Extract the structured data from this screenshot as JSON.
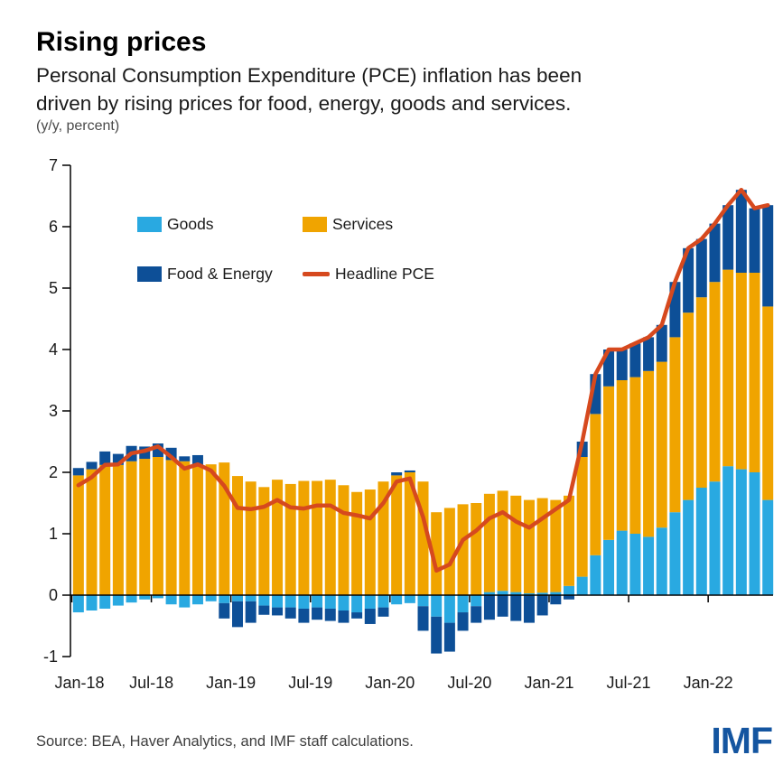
{
  "header": {
    "title": "Rising prices",
    "subtitle_line1": "Personal Consumption Expenditure (PCE) inflation has been",
    "subtitle_line2": "driven by rising prices for food, energy, goods and services.",
    "unit_note": "(y/y, percent)"
  },
  "legend": {
    "goods": {
      "label": "Goods",
      "color": "#29A9E1"
    },
    "services": {
      "label": "Services",
      "color": "#F0A400"
    },
    "food_energy": {
      "label": "Food & Energy",
      "color": "#0D4F97"
    },
    "headline": {
      "label": "Headline PCE",
      "color": "#D6491E"
    }
  },
  "footer": {
    "source": "Source: BEA, Haver Analytics, and IMF staff calculations.",
    "logo_text": "IMF"
  },
  "chart_data": {
    "type": "bar",
    "subtype": "stacked-bars-with-line",
    "title": "Rising prices",
    "xlabel": "",
    "ylabel": "(y/y, percent)",
    "ylim": [
      -1,
      7
    ],
    "grid": false,
    "legend_position": "inside-top-left",
    "x": [
      "Jan-18",
      "Feb-18",
      "Mar-18",
      "Apr-18",
      "May-18",
      "Jun-18",
      "Jul-18",
      "Aug-18",
      "Sep-18",
      "Oct-18",
      "Nov-18",
      "Dec-18",
      "Jan-19",
      "Feb-19",
      "Mar-19",
      "Apr-19",
      "May-19",
      "Jun-19",
      "Jul-19",
      "Aug-19",
      "Sep-19",
      "Oct-19",
      "Nov-19",
      "Dec-19",
      "Jan-20",
      "Feb-20",
      "Mar-20",
      "Apr-20",
      "May-20",
      "Jun-20",
      "Jul-20",
      "Aug-20",
      "Sep-20",
      "Oct-20",
      "Nov-20",
      "Dec-20",
      "Jan-21",
      "Feb-21",
      "Mar-21",
      "Apr-21",
      "May-21",
      "Jun-21",
      "Jul-21",
      "Aug-21",
      "Sep-21",
      "Oct-21",
      "Nov-21",
      "Dec-21",
      "Jan-22",
      "Feb-22",
      "Mar-22",
      "Apr-22",
      "May-22"
    ],
    "stack_order": [
      "goods",
      "services",
      "food_energy"
    ],
    "series": {
      "goods": {
        "name": "Goods",
        "color": "#29A9E1",
        "values": [
          -0.28,
          -0.25,
          -0.22,
          -0.17,
          -0.12,
          -0.07,
          -0.05,
          -0.15,
          -0.2,
          -0.15,
          -0.1,
          -0.13,
          -0.1,
          -0.1,
          -0.17,
          -0.2,
          -0.2,
          -0.22,
          -0.2,
          -0.22,
          -0.25,
          -0.28,
          -0.22,
          -0.2,
          -0.15,
          -0.13,
          -0.18,
          -0.35,
          -0.45,
          -0.28,
          -0.18,
          0.05,
          0.07,
          0.05,
          0.03,
          0.04,
          0.05,
          0.15,
          0.3,
          0.65,
          0.9,
          1.05,
          1.0,
          0.95,
          1.1,
          1.35,
          1.55,
          1.75,
          1.85,
          2.1,
          2.05,
          2.0,
          1.55
        ]
      },
      "services": {
        "name": "Services",
        "color": "#F0A400",
        "values": [
          1.95,
          2.05,
          2.12,
          2.12,
          2.18,
          2.22,
          2.25,
          2.2,
          2.18,
          2.1,
          2.13,
          2.16,
          1.94,
          1.85,
          1.76,
          1.88,
          1.81,
          1.86,
          1.86,
          1.88,
          1.79,
          1.68,
          1.72,
          1.85,
          1.95,
          2.0,
          1.85,
          1.35,
          1.42,
          1.48,
          1.5,
          1.6,
          1.63,
          1.57,
          1.52,
          1.54,
          1.5,
          1.47,
          1.95,
          2.3,
          2.5,
          2.45,
          2.55,
          2.7,
          2.7,
          2.85,
          3.05,
          3.1,
          3.25,
          3.2,
          3.2,
          3.25,
          3.15
        ]
      },
      "food_energy": {
        "name": "Food & Energy",
        "color": "#0D4F97",
        "values": [
          0.12,
          0.12,
          0.22,
          0.18,
          0.25,
          0.2,
          0.22,
          0.2,
          0.08,
          0.18,
          0.0,
          -0.25,
          -0.42,
          -0.35,
          -0.15,
          -0.13,
          -0.18,
          -0.23,
          -0.2,
          -0.2,
          -0.2,
          -0.1,
          -0.25,
          -0.15,
          0.05,
          0.03,
          -0.4,
          -0.6,
          -0.47,
          -0.3,
          -0.27,
          -0.4,
          -0.35,
          -0.42,
          -0.45,
          -0.33,
          -0.15,
          -0.07,
          0.25,
          0.65,
          0.6,
          0.5,
          0.55,
          0.55,
          0.6,
          0.9,
          1.05,
          0.95,
          0.95,
          1.05,
          1.35,
          1.05,
          1.65
        ]
      },
      "headline": {
        "name": "Headline PCE",
        "color": "#D6491E",
        "style": "line",
        "values": [
          1.79,
          1.92,
          2.12,
          2.13,
          2.31,
          2.35,
          2.42,
          2.25,
          2.06,
          2.13,
          2.03,
          1.78,
          1.42,
          1.4,
          1.44,
          1.55,
          1.43,
          1.41,
          1.46,
          1.46,
          1.34,
          1.3,
          1.25,
          1.5,
          1.85,
          1.9,
          1.27,
          0.4,
          0.5,
          0.9,
          1.05,
          1.25,
          1.35,
          1.2,
          1.1,
          1.25,
          1.4,
          1.55,
          2.5,
          3.6,
          4.0,
          4.0,
          4.1,
          4.2,
          4.4,
          5.1,
          5.65,
          5.8,
          6.05,
          6.35,
          6.6,
          6.3,
          6.35
        ]
      }
    },
    "yticks": [
      7,
      6,
      5,
      4,
      3,
      2,
      1,
      0,
      -1
    ],
    "xtick_indices": [
      0,
      6,
      12,
      18,
      24,
      30,
      36,
      42,
      48
    ],
    "xtick_labels": [
      "Jan-18",
      "Jul-18",
      "Jan-19",
      "Jul-19",
      "Jan-20",
      "Jul-20",
      "Jan-21",
      "Jul-21",
      "Jan-22"
    ]
  }
}
